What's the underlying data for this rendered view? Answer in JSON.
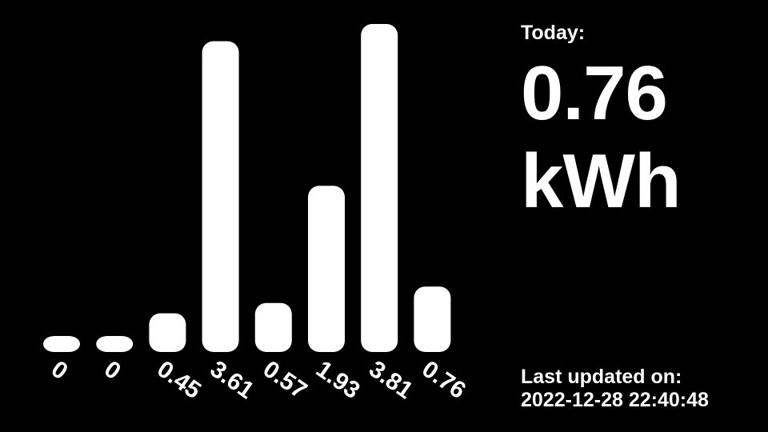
{
  "chart_data": {
    "type": "bar",
    "values": [
      0,
      0,
      0.45,
      3.61,
      0.57,
      1.93,
      3.81,
      0.76
    ],
    "value_labels": [
      "0",
      "0",
      "0.45",
      "3.61",
      "0.57",
      "1.93",
      "3.81",
      "0.76"
    ],
    "ylim": [
      0,
      3.81
    ],
    "bar_color": "#ffffff",
    "background": "#000000",
    "grid": false
  },
  "today": {
    "label": "Today:",
    "value": "0.76",
    "unit": "kWh"
  },
  "updated": {
    "label": "Last updated on:",
    "value": "2022-12-28 22:40:48"
  }
}
